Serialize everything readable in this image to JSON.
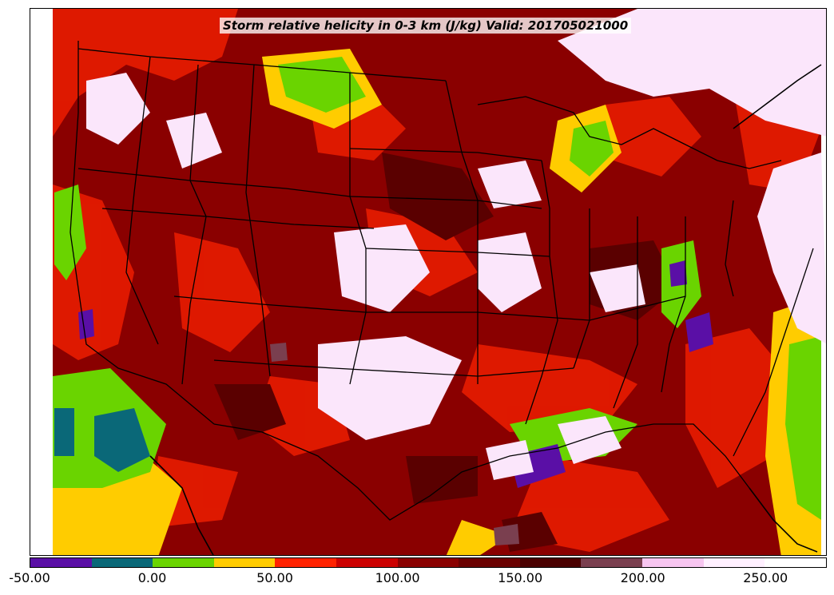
{
  "title": "Storm relative helicity in 0-3 km (J/kg) Valid: 201705021000",
  "colorbar": {
    "min": -50,
    "max": 275,
    "step": 25,
    "colors": [
      "#5a0fa6",
      "#0a6878",
      "#6ad400",
      "#ffcc00",
      "#ff2200",
      "#cc0000",
      "#8a0000",
      "#6a0000",
      "#4a0000",
      "#7a3f4f",
      "#f7c5f0",
      "#fff0ff",
      "#ffffff"
    ],
    "tick_labels": [
      "-50.00",
      "0.00",
      "50.00",
      "100.00",
      "150.00",
      "200.00",
      "250.00"
    ],
    "tick_values": [
      -50,
      0,
      50,
      100,
      150,
      200,
      250
    ]
  },
  "map": {
    "region": "CONUS",
    "field_colors": {
      "background": "#8a0000",
      "red": "#e31a00",
      "dark_red": "#5a0000",
      "yellow": "#ffcc00",
      "green": "#6ad400",
      "teal": "#0a6878",
      "purple": "#5a0fa6",
      "white_pink": "#fbe6fb",
      "boundary": "#000000"
    }
  }
}
